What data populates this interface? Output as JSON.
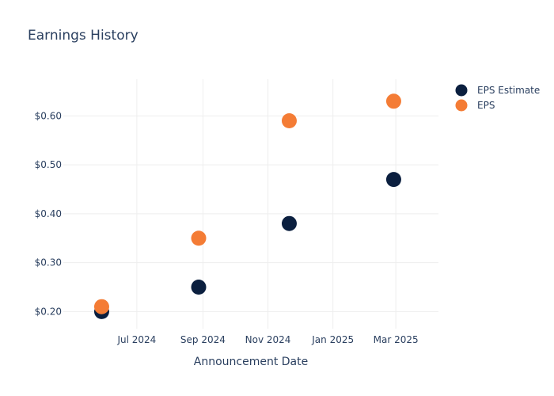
{
  "chart_data": {
    "type": "scatter",
    "title": "Earnings History",
    "xlabel": "Announcement Date",
    "ylabel": "",
    "x_axis_type": "date",
    "xlim": [
      "2024-04-23",
      "2025-04-10"
    ],
    "ylim": [
      0.165,
      0.675
    ],
    "x_ticks": [
      {
        "date": "2024-07-01",
        "label": "Jul 2024"
      },
      {
        "date": "2024-09-01",
        "label": "Sep 2024"
      },
      {
        "date": "2024-11-01",
        "label": "Nov 2024"
      },
      {
        "date": "2025-01-01",
        "label": "Jan 2025"
      },
      {
        "date": "2025-03-01",
        "label": "Mar 2025"
      }
    ],
    "y_ticks": [
      {
        "value": 0.2,
        "label": "$0.20"
      },
      {
        "value": 0.3,
        "label": "$0.30"
      },
      {
        "value": 0.4,
        "label": "$0.40"
      },
      {
        "value": 0.5,
        "label": "$0.50"
      },
      {
        "value": 0.6,
        "label": "$0.60"
      }
    ],
    "grid": true,
    "legend_position": "top-right",
    "series": [
      {
        "name": "EPS Estimate",
        "color": "#0b1f3f",
        "points": [
          {
            "x": "2024-05-29",
            "y": 0.2
          },
          {
            "x": "2024-08-28",
            "y": 0.25
          },
          {
            "x": "2024-11-21",
            "y": 0.38
          },
          {
            "x": "2025-02-27",
            "y": 0.47
          }
        ]
      },
      {
        "name": "EPS",
        "color": "#f47c35",
        "points": [
          {
            "x": "2024-05-29",
            "y": 0.21
          },
          {
            "x": "2024-08-28",
            "y": 0.35
          },
          {
            "x": "2024-11-21",
            "y": 0.59
          },
          {
            "x": "2025-02-27",
            "y": 0.63
          }
        ]
      }
    ]
  }
}
